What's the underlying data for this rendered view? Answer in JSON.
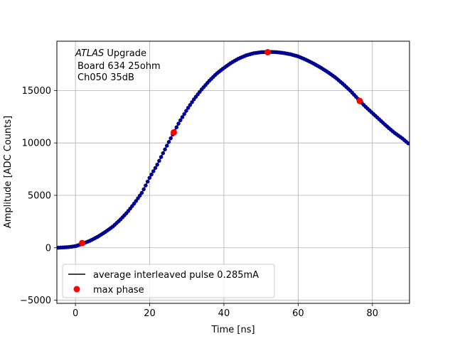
{
  "chart_data": {
    "type": "scatter",
    "xlabel": "Time [ns]",
    "ylabel": "Amplitude [ADC Counts]",
    "xlim": [
      -5,
      90
    ],
    "ylim": [
      -5300,
      19700
    ],
    "xticks": [
      0,
      20,
      40,
      60,
      80
    ],
    "yticks": [
      -5000,
      0,
      5000,
      10000,
      15000
    ],
    "grid": true,
    "legend_position": "lower-left",
    "annotation": {
      "line1_italic": "ATLAS",
      "line1_rest": " Upgrade",
      "line2": "Board 634 25ohm",
      "line3": "Ch050 35dB"
    },
    "series": [
      {
        "name": "average interleaved pulse 0.285mA",
        "kind": "line-with-markers",
        "line_color": "#000000",
        "marker_color": "#0000aa",
        "points": [
          [
            -5,
            0
          ],
          [
            -2,
            60
          ],
          [
            0,
            150
          ],
          [
            2,
            400
          ],
          [
            4,
            680
          ],
          [
            6,
            1050
          ],
          [
            8,
            1500
          ],
          [
            10,
            2000
          ],
          [
            12,
            2650
          ],
          [
            14,
            3400
          ],
          [
            16,
            4300
          ],
          [
            18,
            5300
          ],
          [
            20,
            6700
          ],
          [
            22,
            7900
          ],
          [
            24,
            9300
          ],
          [
            26.5,
            11000
          ],
          [
            28,
            12000
          ],
          [
            30,
            13150
          ],
          [
            32,
            14200
          ],
          [
            34,
            15100
          ],
          [
            36,
            15900
          ],
          [
            38,
            16600
          ],
          [
            40,
            17150
          ],
          [
            42,
            17650
          ],
          [
            44,
            18050
          ],
          [
            46,
            18350
          ],
          [
            48,
            18550
          ],
          [
            50,
            18650
          ],
          [
            52,
            18680
          ],
          [
            54,
            18660
          ],
          [
            56,
            18580
          ],
          [
            58,
            18450
          ],
          [
            60,
            18250
          ],
          [
            62,
            17950
          ],
          [
            64,
            17600
          ],
          [
            66,
            17200
          ],
          [
            68,
            16750
          ],
          [
            70,
            16250
          ],
          [
            72,
            15650
          ],
          [
            74,
            15000
          ],
          [
            76.5,
            14050
          ],
          [
            78,
            13500
          ],
          [
            80,
            12850
          ],
          [
            82,
            12200
          ],
          [
            84,
            11550
          ],
          [
            86,
            10950
          ],
          [
            88,
            10450
          ],
          [
            90,
            9850
          ]
        ]
      },
      {
        "name": "max phase",
        "kind": "markers",
        "marker_color": "#ff0000",
        "points": [
          [
            1.8,
            450
          ],
          [
            26.5,
            11000
          ],
          [
            51.8,
            18650
          ],
          [
            76.6,
            14000
          ]
        ]
      }
    ]
  }
}
